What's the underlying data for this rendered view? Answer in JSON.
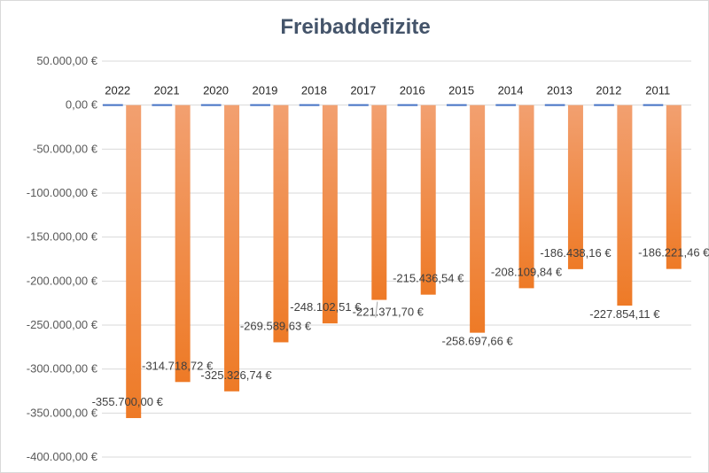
{
  "chart_data": {
    "type": "bar",
    "title": "Freibaddefizite",
    "categories": [
      "2022",
      "2021",
      "2020",
      "2019",
      "2018",
      "2017",
      "2016",
      "2015",
      "2014",
      "2013",
      "2012",
      "2011"
    ],
    "series": [
      {
        "values": [
          -355700.0,
          -314718.72,
          -325326.74,
          -269589.63,
          -248102.51,
          -221371.7,
          -215436.54,
          -258697.66,
          -208109.84,
          -186438.16,
          -227854.11,
          -186221.46
        ],
        "labels": [
          "-355.700,00 €",
          "-314.718,72 €",
          "-325.326,74 €",
          "-269.589,63 €",
          "-248.102,51 €",
          "-221.371,70 €",
          "-215.436,54 €",
          "-258.697,66 €",
          "-208.109,84 €",
          "-186.438,16 €",
          "-227.854,11 €",
          "-186.221,46 €"
        ]
      }
    ],
    "ylim": [
      -400000,
      50000
    ],
    "yticks": [
      50000,
      0,
      -50000,
      -100000,
      -150000,
      -200000,
      -250000,
      -300000,
      -350000,
      -400000
    ],
    "ytick_labels": [
      "50.000,00 €",
      "0,00 €",
      "-50.000,00 €",
      "-100.000,00 €",
      "-150.000,00 €",
      "-200.000,00 €",
      "-250.000,00 €",
      "-300.000,00 €",
      "-350.000,00 €",
      "-400.000,00 €"
    ],
    "grid": true,
    "xlabel": "",
    "ylabel": "",
    "colors": {
      "bar_top": "#f2a070",
      "bar_bottom": "#ee7a26",
      "grid": "#d9d9d9",
      "zero_marker": "#4472c4",
      "title": "#44546a"
    }
  }
}
